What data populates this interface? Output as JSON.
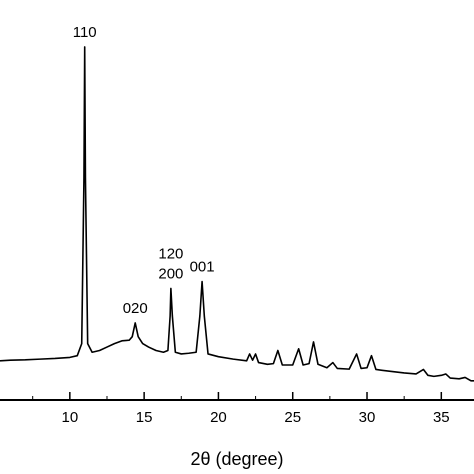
{
  "chart_data": {
    "type": "line",
    "title": "",
    "xlabel": "2θ (degree)",
    "ylabel": "",
    "xlim": [
      5.3,
      37.2
    ],
    "ylim": [
      0,
      1
    ],
    "x_ticks": [
      {
        "value": 10,
        "label": "10"
      },
      {
        "value": 15,
        "label": "15"
      },
      {
        "value": 20,
        "label": "20"
      },
      {
        "value": 25,
        "label": "25"
      },
      {
        "value": 30,
        "label": "30"
      },
      {
        "value": 35,
        "label": "35"
      }
    ],
    "grid": false,
    "line_color": "#000000",
    "peaks": [
      {
        "x": 11.0,
        "label": "110"
      },
      {
        "x": 14.4,
        "label": "020"
      },
      {
        "x": 16.8,
        "label": "120"
      },
      {
        "x": 16.8,
        "label": "200"
      },
      {
        "x": 18.9,
        "label": "001"
      }
    ],
    "series": [
      {
        "values": [
          [
            5.3,
            0.07
          ],
          [
            6.0,
            0.072
          ],
          [
            7.0,
            0.073
          ],
          [
            8.0,
            0.075
          ],
          [
            9.0,
            0.077
          ],
          [
            10.0,
            0.08
          ],
          [
            10.5,
            0.085
          ],
          [
            10.8,
            0.12
          ],
          [
            10.95,
            0.6
          ],
          [
            11.0,
            0.98
          ],
          [
            11.05,
            0.6
          ],
          [
            11.2,
            0.12
          ],
          [
            11.5,
            0.095
          ],
          [
            12.0,
            0.1
          ],
          [
            12.5,
            0.11
          ],
          [
            13.0,
            0.12
          ],
          [
            13.5,
            0.128
          ],
          [
            14.0,
            0.13
          ],
          [
            14.2,
            0.14
          ],
          [
            14.4,
            0.18
          ],
          [
            14.6,
            0.14
          ],
          [
            14.9,
            0.12
          ],
          [
            15.3,
            0.11
          ],
          [
            15.8,
            0.1
          ],
          [
            16.3,
            0.095
          ],
          [
            16.6,
            0.1
          ],
          [
            16.75,
            0.2
          ],
          [
            16.8,
            0.28
          ],
          [
            16.9,
            0.2
          ],
          [
            17.1,
            0.095
          ],
          [
            17.5,
            0.09
          ],
          [
            18.0,
            0.092
          ],
          [
            18.5,
            0.095
          ],
          [
            18.75,
            0.2
          ],
          [
            18.9,
            0.3
          ],
          [
            19.05,
            0.2
          ],
          [
            19.3,
            0.09
          ],
          [
            20.0,
            0.082
          ],
          [
            21.0,
            0.075
          ],
          [
            21.9,
            0.07
          ],
          [
            22.1,
            0.09
          ],
          [
            22.3,
            0.072
          ],
          [
            22.5,
            0.09
          ],
          [
            22.7,
            0.065
          ],
          [
            23.3,
            0.06
          ],
          [
            23.7,
            0.062
          ],
          [
            24.0,
            0.1
          ],
          [
            24.3,
            0.058
          ],
          [
            25.0,
            0.058
          ],
          [
            25.4,
            0.105
          ],
          [
            25.7,
            0.058
          ],
          [
            26.1,
            0.062
          ],
          [
            26.4,
            0.125
          ],
          [
            26.7,
            0.06
          ],
          [
            27.3,
            0.05
          ],
          [
            27.7,
            0.065
          ],
          [
            28.0,
            0.048
          ],
          [
            28.8,
            0.046
          ],
          [
            29.3,
            0.09
          ],
          [
            29.6,
            0.048
          ],
          [
            30.0,
            0.05
          ],
          [
            30.3,
            0.085
          ],
          [
            30.6,
            0.045
          ],
          [
            31.5,
            0.04
          ],
          [
            32.5,
            0.035
          ],
          [
            33.3,
            0.032
          ],
          [
            33.8,
            0.045
          ],
          [
            34.1,
            0.028
          ],
          [
            34.5,
            0.025
          ],
          [
            35.0,
            0.028
          ],
          [
            35.3,
            0.032
          ],
          [
            35.6,
            0.02
          ],
          [
            36.2,
            0.018
          ],
          [
            36.6,
            0.022
          ],
          [
            37.0,
            0.012
          ],
          [
            37.2,
            0.012
          ]
        ]
      }
    ]
  }
}
